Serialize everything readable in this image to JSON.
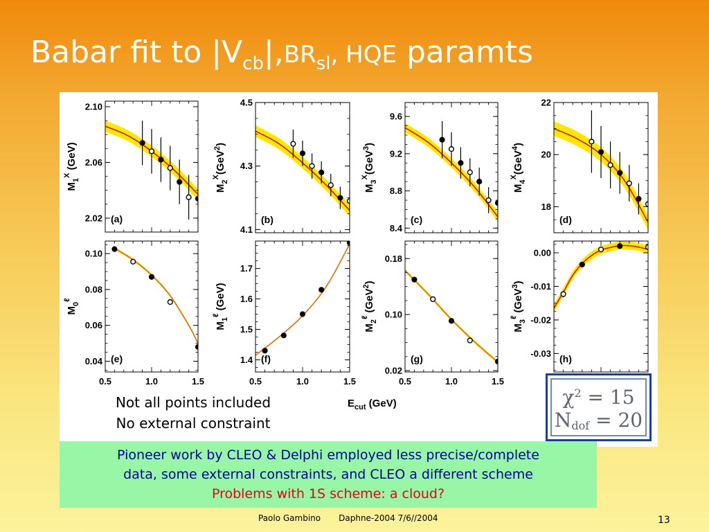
{
  "slide": {
    "title": {
      "part1": "Babar fit to |V",
      "sub1": "cb",
      "part2": "|,",
      "part3": "BR",
      "sub2": "sl",
      "part4": ", HQE",
      "part5": " paramts"
    },
    "note_lines": [
      "Not all points included",
      "No external constraint"
    ],
    "fit_box": {
      "chi_symbol": "χ",
      "chi_sup": "2",
      "chi_value": " = 15",
      "n_symbol": "N",
      "n_sub": "dof",
      "n_value": " = 20",
      "border_color": "#1c3f8f"
    },
    "summary": {
      "line1": "Pioneer work by CLEO & Delphi employed less precise/complete",
      "line2": "data, some external constraints, and CLEO a different scheme",
      "line3": "Problems with 1S scheme: a cloud?",
      "text_color": "#000099",
      "highlight_color": "#e8001d",
      "background": "#98f7a6"
    },
    "footer": {
      "author": "Paolo Gambino",
      "event": "Daphne-2004  7/6//2004",
      "page": "13"
    }
  },
  "chart_data": [
    {
      "type": "scatter",
      "panel": "(a)",
      "ylabel": {
        "main": "M",
        "sub": "1",
        "sup": "X",
        "unit": " (GeV)"
      },
      "xlim": [
        0.5,
        1.5
      ],
      "ylim": [
        2.01,
        2.104
      ],
      "yticks": [
        2.02,
        2.06,
        2.1
      ],
      "ytick_labels": [
        "2.02",
        "2.06",
        "2.10"
      ],
      "show_xticks": false,
      "band_width": 0.004,
      "fit_x": [
        0.5,
        0.75,
        1.0,
        1.25,
        1.5
      ],
      "fit_y": [
        2.086,
        2.079,
        2.068,
        2.054,
        2.037
      ],
      "points": [
        {
          "x": 0.9,
          "y": 2.074,
          "err": 0.016,
          "filled": true
        },
        {
          "x": 1.0,
          "y": 2.068,
          "err": 0.016,
          "filled": false
        },
        {
          "x": 1.1,
          "y": 2.062,
          "err": 0.016,
          "filled": true
        },
        {
          "x": 1.2,
          "y": 2.056,
          "err": 0.016,
          "filled": false
        },
        {
          "x": 1.3,
          "y": 2.046,
          "err": 0.016,
          "filled": true
        },
        {
          "x": 1.4,
          "y": 2.035,
          "err": 0.016,
          "filled": false
        },
        {
          "x": 1.5,
          "y": 2.034,
          "err": 0.016,
          "filled": true
        }
      ]
    },
    {
      "type": "scatter",
      "panel": "(b)",
      "ylabel": {
        "main": "M",
        "sub": "2",
        "sup": "X",
        "unit": "(GeV",
        "unit_sup": "2",
        "unit_end": ")"
      },
      "xlim": [
        0.5,
        1.5
      ],
      "ylim": [
        4.09,
        4.5
      ],
      "yticks": [
        4.1,
        4.3,
        4.5
      ],
      "ytick_labels": [
        "4.1",
        "4.3",
        "4.5"
      ],
      "show_xticks": false,
      "band_width": 0.018,
      "fit_x": [
        0.5,
        0.75,
        1.0,
        1.25,
        1.5
      ],
      "fit_y": [
        4.41,
        4.37,
        4.31,
        4.24,
        4.16
      ],
      "points": [
        {
          "x": 0.9,
          "y": 4.37,
          "err": 0.045,
          "filled": false
        },
        {
          "x": 1.0,
          "y": 4.34,
          "err": 0.04,
          "filled": true
        },
        {
          "x": 1.1,
          "y": 4.3,
          "err": 0.04,
          "filled": false
        },
        {
          "x": 1.2,
          "y": 4.28,
          "err": 0.035,
          "filled": true
        },
        {
          "x": 1.3,
          "y": 4.24,
          "err": 0.035,
          "filled": false
        },
        {
          "x": 1.4,
          "y": 4.2,
          "err": 0.035,
          "filled": true
        },
        {
          "x": 1.5,
          "y": 4.19,
          "err": 0.035,
          "filled": false
        }
      ]
    },
    {
      "type": "scatter",
      "panel": "(c)",
      "ylabel": {
        "main": "M",
        "sub": "3",
        "sup": "X",
        "unit": "(GeV",
        "unit_sup": "3",
        "unit_end": ")"
      },
      "xlim": [
        0.5,
        1.5
      ],
      "ylim": [
        8.35,
        9.75
      ],
      "yticks": [
        8.4,
        8.8,
        9.2,
        9.6
      ],
      "ytick_labels": [
        "8.4",
        "8.8",
        "9.2",
        "9.6"
      ],
      "show_xticks": false,
      "band_width": 0.05,
      "fit_x": [
        0.5,
        0.75,
        1.0,
        1.25,
        1.5
      ],
      "fit_y": [
        9.48,
        9.32,
        9.1,
        8.84,
        8.52
      ],
      "points": [
        {
          "x": 0.9,
          "y": 9.35,
          "err": 0.2,
          "filled": true
        },
        {
          "x": 1.0,
          "y": 9.25,
          "err": 0.18,
          "filled": false
        },
        {
          "x": 1.1,
          "y": 9.1,
          "err": 0.17,
          "filled": true
        },
        {
          "x": 1.2,
          "y": 9.0,
          "err": 0.15,
          "filled": false
        },
        {
          "x": 1.3,
          "y": 8.9,
          "err": 0.15,
          "filled": true
        },
        {
          "x": 1.4,
          "y": 8.7,
          "err": 0.14,
          "filled": false
        },
        {
          "x": 1.5,
          "y": 8.67,
          "err": 0.14,
          "filled": true
        }
      ]
    },
    {
      "type": "scatter",
      "panel": "(d)",
      "ylabel": {
        "main": "M",
        "sub": "4",
        "sup": "X",
        "unit": "(GeV",
        "unit_sup": "4",
        "unit_end": ")"
      },
      "xlim": [
        0.5,
        1.5
      ],
      "ylim": [
        17.0,
        22.0
      ],
      "yticks": [
        18,
        20,
        22
      ],
      "ytick_labels": [
        "18",
        "20",
        "22"
      ],
      "show_xticks": false,
      "band_width": 0.28,
      "fit_x": [
        0.5,
        0.75,
        1.0,
        1.25,
        1.5
      ],
      "fit_y": [
        21.0,
        20.6,
        20.0,
        19.0,
        17.4
      ],
      "points": [
        {
          "x": 0.9,
          "y": 20.5,
          "err": 1.2,
          "filled": false
        },
        {
          "x": 1.0,
          "y": 20.1,
          "err": 1.0,
          "filled": true
        },
        {
          "x": 1.1,
          "y": 19.6,
          "err": 0.9,
          "filled": false
        },
        {
          "x": 1.2,
          "y": 19.3,
          "err": 0.8,
          "filled": true
        },
        {
          "x": 1.3,
          "y": 18.9,
          "err": 0.7,
          "filled": false
        },
        {
          "x": 1.4,
          "y": 18.3,
          "err": 0.6,
          "filled": true
        },
        {
          "x": 1.5,
          "y": 18.1,
          "err": 0.6,
          "filled": false
        }
      ]
    },
    {
      "type": "scatter",
      "panel": "(e)",
      "ylabel": {
        "main": "M",
        "sub": "0",
        "sup": "ℓ",
        "unit": ""
      },
      "xlim": [
        0.5,
        1.5
      ],
      "ylim": [
        0.034,
        0.107
      ],
      "yticks": [
        0.04,
        0.06,
        0.08,
        0.1
      ],
      "ytick_labels": [
        "0.04",
        "0.06",
        "0.08",
        "0.10"
      ],
      "show_xticks": true,
      "band_width": 0.0007,
      "xticks": [
        0.5,
        1.0,
        1.5
      ],
      "xtick_labels": [
        "0.5",
        "1.0",
        "1.5"
      ],
      "fit_x": [
        0.6,
        0.8,
        1.0,
        1.2,
        1.4,
        1.5,
        1.6
      ],
      "fit_y": [
        0.103,
        0.0965,
        0.088,
        0.0765,
        0.06,
        0.05,
        0.04
      ],
      "points": [
        {
          "x": 0.6,
          "y": 0.1025,
          "err": 0.0015,
          "filled": true
        },
        {
          "x": 0.8,
          "y": 0.0955,
          "err": 0.0008,
          "filled": false
        },
        {
          "x": 1.0,
          "y": 0.087,
          "err": 0.0008,
          "filled": true
        },
        {
          "x": 1.2,
          "y": 0.073,
          "err": 0.0008,
          "filled": false
        },
        {
          "x": 1.5,
          "y": 0.048,
          "err": 0.0008,
          "filled": true
        }
      ]
    },
    {
      "type": "scatter",
      "panel": "(f)",
      "ylabel": {
        "main": "M",
        "sub": "1",
        "sup": "ℓ",
        "unit": " (GeV)"
      },
      "xlim": [
        0.5,
        1.5
      ],
      "ylim": [
        1.36,
        1.79
      ],
      "yticks": [
        1.4,
        1.5,
        1.6,
        1.7
      ],
      "ytick_labels": [
        "1.4",
        "1.5",
        "1.6",
        "1.7"
      ],
      "show_xticks": true,
      "band_width": 0.002,
      "xticks": [
        0.5,
        1.0,
        1.5
      ],
      "xtick_labels": [
        "0.5",
        "1.0",
        "1.5"
      ],
      "fit_x": [
        0.5,
        0.75,
        1.0,
        1.25,
        1.5
      ],
      "fit_y": [
        1.415,
        1.475,
        1.545,
        1.64,
        1.78
      ],
      "points": [
        {
          "x": 0.6,
          "y": 1.43,
          "err": 0.004,
          "filled": true
        },
        {
          "x": 0.8,
          "y": 1.48,
          "err": 0.004,
          "filled": true
        },
        {
          "x": 1.0,
          "y": 1.55,
          "err": 0.004,
          "filled": true
        },
        {
          "x": 1.2,
          "y": 1.63,
          "err": 0.004,
          "filled": true
        },
        {
          "x": 1.5,
          "y": 1.785,
          "err": 0.006,
          "filled": true
        }
      ]
    },
    {
      "type": "scatter",
      "panel": "(g)",
      "ylabel": {
        "main": "M",
        "sub": "2",
        "sup": "ℓ",
        "unit": " (GeV",
        "unit_sup": "2",
        "unit_end": ")"
      },
      "xlim": [
        0.5,
        1.5
      ],
      "ylim": [
        0.018,
        0.205
      ],
      "yticks": [
        0.02,
        0.1,
        0.18
      ],
      "ytick_labels": [
        "0.02",
        "0.10",
        "0.18"
      ],
      "show_xticks": true,
      "band_width": 0.002,
      "xticks": [
        0.5,
        1.0,
        1.5
      ],
      "xtick_labels": [
        "0.5",
        "1.0",
        "1.5"
      ],
      "fit_x": [
        0.5,
        0.75,
        1.0,
        1.25,
        1.5,
        1.55
      ],
      "fit_y": [
        0.163,
        0.129,
        0.093,
        0.061,
        0.032,
        0.027
      ],
      "points": [
        {
          "x": 0.6,
          "y": 0.15,
          "err": 0.003,
          "filled": true
        },
        {
          "x": 0.8,
          "y": 0.122,
          "err": 0.003,
          "filled": false
        },
        {
          "x": 1.0,
          "y": 0.091,
          "err": 0.003,
          "filled": true
        },
        {
          "x": 1.2,
          "y": 0.063,
          "err": 0.003,
          "filled": false
        },
        {
          "x": 1.5,
          "y": 0.033,
          "err": 0.003,
          "filled": true
        }
      ]
    },
    {
      "type": "scatter",
      "panel": "(h)",
      "ylabel": {
        "main": "M",
        "sub": "3",
        "sup": "ℓ",
        "unit": " (GeV",
        "unit_sup": "3",
        "unit_end": ")"
      },
      "xlim": [
        0.5,
        1.5
      ],
      "ylim": [
        -0.0355,
        0.0035
      ],
      "yticks": [
        -0.03,
        -0.02,
        -0.01,
        0.0
      ],
      "ytick_labels": [
        "-0.03",
        "-0.02",
        "-0.01",
        "0.00"
      ],
      "show_xticks": false,
      "band_width": 0.0012,
      "fit_x": [
        0.5,
        0.6,
        0.7,
        0.8,
        0.9,
        1.0,
        1.1,
        1.2,
        1.3,
        1.4,
        1.5
      ],
      "fit_y": [
        -0.0165,
        -0.0117,
        -0.0067,
        -0.0032,
        -0.0008,
        0.0008,
        0.0016,
        0.0021,
        0.0021,
        0.0017,
        0.001
      ],
      "points": [
        {
          "x": 0.6,
          "y": -0.0123,
          "err": 0.001,
          "filled": false
        },
        {
          "x": 0.8,
          "y": -0.0035,
          "err": 0.0006,
          "filled": true
        },
        {
          "x": 1.0,
          "y": 0.001,
          "err": 0.0006,
          "filled": false
        },
        {
          "x": 1.2,
          "y": 0.002,
          "err": 0.0006,
          "filled": true
        },
        {
          "x": 1.5,
          "y": 0.0017,
          "err": 0.0006,
          "filled": false
        }
      ]
    }
  ],
  "shared_xlabel": {
    "main": "E",
    "sub": "cut",
    "unit": " (GeV)"
  },
  "colors": {
    "band": "#ffe800",
    "fit_line": "#e01010",
    "fit_line_bottom": "#e86a00"
  }
}
